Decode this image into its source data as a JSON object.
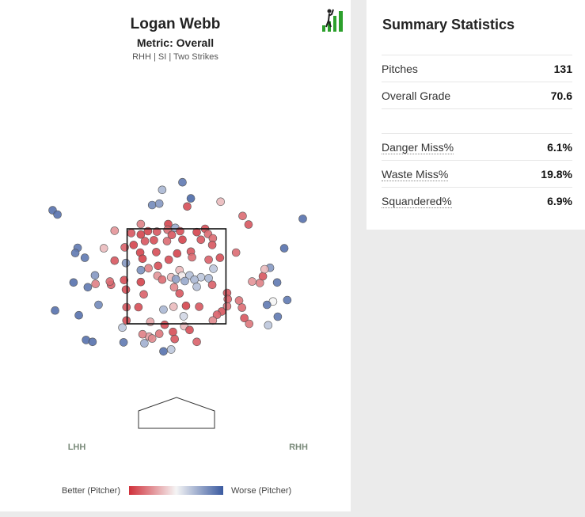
{
  "chart": {
    "title": "Logan Webb",
    "subtitle": "Metric: Overall",
    "caption": "RHH | SI | Two Strikes",
    "side_left": "LHH",
    "side_right": "RHH",
    "legend_left": "Better (Pitcher)",
    "legend_right": "Worse (Pitcher)"
  },
  "colors": {
    "better": "#d0303a",
    "neutral": "#f5f5f5",
    "worse": "#3a5aa0",
    "logo_green": "#2ca02c"
  },
  "summary": {
    "title": "Summary Statistics",
    "rows": [
      {
        "label": "Pitches",
        "value": "131"
      },
      {
        "label": "Overall Grade",
        "value": "70.6"
      }
    ],
    "metrics": [
      {
        "label": "Danger Miss%",
        "value": "6.1%"
      },
      {
        "label": "Waste Miss%",
        "value": "19.8%"
      },
      {
        "label": "Squandered%",
        "value": "6.9%"
      }
    ]
  },
  "chart_data": {
    "type": "scatter",
    "xlim": [
      -2.3,
      2.3
    ],
    "ylim": [
      0.35,
      4.95
    ],
    "strike_zone": {
      "x": [
        -0.83,
        0.83
      ],
      "y": [
        1.5,
        3.5
      ]
    },
    "color_scale": {
      "min": -1,
      "max": 1
    },
    "points": [
      {
        "x": -0.24,
        "y": 4.32,
        "v": 0.4
      },
      {
        "x": 0.1,
        "y": 4.48,
        "v": 0.8
      },
      {
        "x": -0.41,
        "y": 4.0,
        "v": 0.7
      },
      {
        "x": -0.29,
        "y": 4.03,
        "v": 0.6
      },
      {
        "x": 0.24,
        "y": 4.14,
        "v": 0.9
      },
      {
        "x": 0.74,
        "y": 4.07,
        "v": -0.3
      },
      {
        "x": 0.18,
        "y": 3.97,
        "v": -0.85
      },
      {
        "x": -0.6,
        "y": 3.6,
        "v": -0.6
      },
      {
        "x": -0.14,
        "y": 3.6,
        "v": -0.9
      },
      {
        "x": -0.02,
        "y": 3.52,
        "v": 0.5
      },
      {
        "x": 1.11,
        "y": 3.77,
        "v": -0.7
      },
      {
        "x": 1.21,
        "y": 3.59,
        "v": -0.8
      },
      {
        "x": -1.04,
        "y": 3.46,
        "v": -0.5
      },
      {
        "x": -0.76,
        "y": 3.41,
        "v": -0.8
      },
      {
        "x": -0.6,
        "y": 3.38,
        "v": -0.9
      },
      {
        "x": -0.48,
        "y": 3.45,
        "v": -0.9
      },
      {
        "x": -0.33,
        "y": 3.44,
        "v": -0.8
      },
      {
        "x": -0.15,
        "y": 3.48,
        "v": -0.7
      },
      {
        "x": 0.06,
        "y": 3.45,
        "v": -0.85
      },
      {
        "x": 0.34,
        "y": 3.43,
        "v": -0.9
      },
      {
        "x": 0.48,
        "y": 3.5,
        "v": -0.85
      },
      {
        "x": -0.08,
        "y": 3.37,
        "v": -0.8
      },
      {
        "x": 0.53,
        "y": 3.39,
        "v": -0.7
      },
      {
        "x": -0.72,
        "y": 3.16,
        "v": -0.9
      },
      {
        "x": -0.53,
        "y": 3.24,
        "v": -0.8
      },
      {
        "x": -0.38,
        "y": 3.26,
        "v": -0.85
      },
      {
        "x": -0.16,
        "y": 3.24,
        "v": -0.7
      },
      {
        "x": 0.1,
        "y": 3.27,
        "v": -0.9
      },
      {
        "x": 0.41,
        "y": 3.27,
        "v": -0.8
      },
      {
        "x": 0.61,
        "y": 3.3,
        "v": -0.7
      },
      {
        "x": 0.6,
        "y": 3.16,
        "v": -0.8
      },
      {
        "x": -1.22,
        "y": 3.09,
        "v": -0.3
      },
      {
        "x": -0.87,
        "y": 3.11,
        "v": -0.75
      },
      {
        "x": -0.61,
        "y": 3.0,
        "v": -0.9
      },
      {
        "x": -0.34,
        "y": 3.01,
        "v": -0.85
      },
      {
        "x": 0.01,
        "y": 2.98,
        "v": -0.9
      },
      {
        "x": 0.24,
        "y": 3.02,
        "v": -0.8
      },
      {
        "x": 1.0,
        "y": 3.0,
        "v": -0.7
      },
      {
        "x": -0.57,
        "y": 2.87,
        "v": -0.9
      },
      {
        "x": -0.13,
        "y": 2.85,
        "v": -0.85
      },
      {
        "x": 0.26,
        "y": 2.9,
        "v": -0.7
      },
      {
        "x": 0.54,
        "y": 2.85,
        "v": -0.75
      },
      {
        "x": 0.73,
        "y": 2.89,
        "v": -0.85
      },
      {
        "x": -1.04,
        "y": 2.83,
        "v": -0.8
      },
      {
        "x": -0.85,
        "y": 2.78,
        "v": 0.6
      },
      {
        "x": -0.47,
        "y": 2.67,
        "v": -0.6
      },
      {
        "x": -0.31,
        "y": 2.72,
        "v": -0.85
      },
      {
        "x": 0.05,
        "y": 2.63,
        "v": -0.3
      },
      {
        "x": 0.62,
        "y": 2.66,
        "v": 0.3
      },
      {
        "x": 0.09,
        "y": 2.51,
        "v": -0.05
      },
      {
        "x": 0.41,
        "y": 2.48,
        "v": 0.3
      },
      {
        "x": -0.32,
        "y": 2.51,
        "v": -0.5
      },
      {
        "x": -0.09,
        "y": 2.48,
        "v": -0.3
      },
      {
        "x": 0.22,
        "y": 2.52,
        "v": 0.35
      },
      {
        "x": 0.54,
        "y": 2.46,
        "v": 0.4
      },
      {
        "x": -0.88,
        "y": 2.42,
        "v": -0.85
      },
      {
        "x": -0.24,
        "y": 2.43,
        "v": -0.7
      },
      {
        "x": 0.14,
        "y": 2.4,
        "v": 0.5
      },
      {
        "x": -0.01,
        "y": 2.44,
        "v": 0.55
      },
      {
        "x": 0.3,
        "y": 2.43,
        "v": 0.4
      },
      {
        "x": -0.6,
        "y": 2.38,
        "v": -0.9
      },
      {
        "x": -1.37,
        "y": 2.52,
        "v": 0.6
      },
      {
        "x": -1.54,
        "y": 2.89,
        "v": 0.8
      },
      {
        "x": -1.66,
        "y": 3.1,
        "v": 0.8
      },
      {
        "x": -1.7,
        "y": 2.99,
        "v": 0.8
      },
      {
        "x": -1.36,
        "y": 2.34,
        "v": -0.6
      },
      {
        "x": -1.1,
        "y": 2.32,
        "v": -0.75
      },
      {
        "x": -1.12,
        "y": 2.39,
        "v": -0.7
      },
      {
        "x": -1.73,
        "y": 2.37,
        "v": 0.85
      },
      {
        "x": -1.49,
        "y": 2.27,
        "v": 0.8
      },
      {
        "x": -0.85,
        "y": 2.22,
        "v": -0.85
      },
      {
        "x": -0.04,
        "y": 2.27,
        "v": -0.55
      },
      {
        "x": 0.34,
        "y": 2.28,
        "v": 0.35
      },
      {
        "x": 0.6,
        "y": 2.32,
        "v": -0.75
      },
      {
        "x": -0.55,
        "y": 2.12,
        "v": -0.75
      },
      {
        "x": 0.05,
        "y": 2.14,
        "v": -0.8
      },
      {
        "x": -0.84,
        "y": 1.85,
        "v": -0.8
      },
      {
        "x": -0.64,
        "y": 1.85,
        "v": -0.85
      },
      {
        "x": -0.22,
        "y": 1.8,
        "v": 0.4
      },
      {
        "x": 0.16,
        "y": 1.88,
        "v": -0.9
      },
      {
        "x": 0.38,
        "y": 1.86,
        "v": -0.8
      },
      {
        "x": -0.05,
        "y": 1.86,
        "v": -0.3
      },
      {
        "x": 0.76,
        "y": 1.76,
        "v": -0.8
      },
      {
        "x": -0.84,
        "y": 1.57,
        "v": -0.85
      },
      {
        "x": -0.44,
        "y": 1.54,
        "v": -0.4
      },
      {
        "x": 0.12,
        "y": 1.66,
        "v": 0.2
      },
      {
        "x": 0.68,
        "y": 1.69,
        "v": -0.75
      },
      {
        "x": -0.2,
        "y": 1.48,
        "v": -0.85
      },
      {
        "x": 0.13,
        "y": 1.45,
        "v": -0.3
      },
      {
        "x": 0.61,
        "y": 1.57,
        "v": -0.55
      },
      {
        "x": 0.85,
        "y": 1.87,
        "v": -0.65
      },
      {
        "x": -0.06,
        "y": 1.33,
        "v": -0.85
      },
      {
        "x": 0.22,
        "y": 1.37,
        "v": -0.85
      },
      {
        "x": -0.03,
        "y": 1.18,
        "v": -0.8
      },
      {
        "x": 0.34,
        "y": 1.12,
        "v": -0.75
      },
      {
        "x": -0.46,
        "y": 1.23,
        "v": -0.45
      },
      {
        "x": -0.41,
        "y": 1.19,
        "v": -0.55
      },
      {
        "x": -0.29,
        "y": 1.29,
        "v": -0.65
      },
      {
        "x": -0.54,
        "y": 1.09,
        "v": 0.45
      },
      {
        "x": -0.89,
        "y": 1.11,
        "v": 0.8
      },
      {
        "x": -0.91,
        "y": 1.42,
        "v": 0.3
      },
      {
        "x": -0.57,
        "y": 1.28,
        "v": -0.6
      },
      {
        "x": 0.85,
        "y": 2.15,
        "v": -0.8
      },
      {
        "x": 0.86,
        "y": 2.02,
        "v": -0.75
      },
      {
        "x": 1.05,
        "y": 1.99,
        "v": -0.65
      },
      {
        "x": 1.27,
        "y": 2.39,
        "v": -0.5
      },
      {
        "x": 1.4,
        "y": 2.36,
        "v": -0.6
      },
      {
        "x": 1.45,
        "y": 2.5,
        "v": -0.8
      },
      {
        "x": 1.57,
        "y": 2.68,
        "v": 0.6
      },
      {
        "x": 1.48,
        "y": 2.65,
        "v": -0.3
      },
      {
        "x": 1.81,
        "y": 3.09,
        "v": 0.85
      },
      {
        "x": 1.69,
        "y": 2.37,
        "v": 0.8
      },
      {
        "x": 1.86,
        "y": 2.0,
        "v": 0.8
      },
      {
        "x": 1.62,
        "y": 1.97,
        "v": 0.0
      },
      {
        "x": 1.52,
        "y": 1.9,
        "v": 0.8
      },
      {
        "x": 1.7,
        "y": 1.65,
        "v": 0.8
      },
      {
        "x": 1.54,
        "y": 1.47,
        "v": 0.3
      },
      {
        "x": 1.1,
        "y": 1.84,
        "v": -0.7
      },
      {
        "x": 1.14,
        "y": 1.62,
        "v": -0.8
      },
      {
        "x": 1.22,
        "y": 1.5,
        "v": -0.65
      },
      {
        "x": -0.6,
        "y": 2.63,
        "v": 0.65
      },
      {
        "x": 2.12,
        "y": 3.71,
        "v": 0.85
      },
      {
        "x": -2.04,
        "y": 1.78,
        "v": 0.85
      },
      {
        "x": -2.08,
        "y": 3.89,
        "v": 0.85
      },
      {
        "x": -2.0,
        "y": 3.8,
        "v": 0.85
      },
      {
        "x": -1.64,
        "y": 1.68,
        "v": 0.85
      },
      {
        "x": -1.31,
        "y": 1.9,
        "v": 0.7
      },
      {
        "x": -1.52,
        "y": 1.16,
        "v": 0.85
      },
      {
        "x": -1.41,
        "y": 1.12,
        "v": 0.85
      },
      {
        "x": -0.22,
        "y": 0.92,
        "v": 0.85
      },
      {
        "x": -0.09,
        "y": 0.96,
        "v": 0.3
      }
    ]
  }
}
